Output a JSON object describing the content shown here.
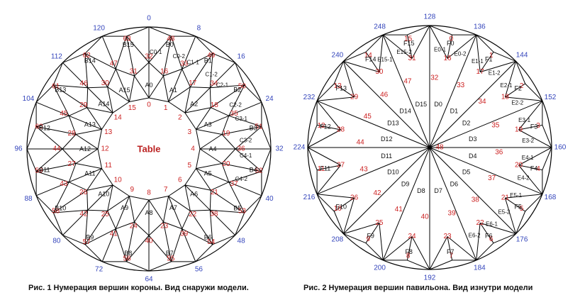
{
  "colors": {
    "line": "#000000",
    "vertex": "#cc2222",
    "outer": "#3344bb",
    "table_text": "#bb2222",
    "caption": "#111111"
  },
  "crown": {
    "table_label": "Table",
    "outer_labels": [
      "0",
      "8",
      "16",
      "24",
      "32",
      "40",
      "48",
      "56",
      "64",
      "72",
      "80",
      "88",
      "96",
      "104",
      "112",
      "120"
    ],
    "girdle_labels": [
      "B0",
      "B1",
      "B2",
      "B3",
      "B4",
      "B5",
      "B6",
      "B7",
      "B8",
      "B9",
      "B10",
      "B11",
      "B12",
      "B13",
      "B14",
      "B15"
    ],
    "table_vertices": [
      "0",
      "1",
      "2",
      "3",
      "4",
      "5",
      "6",
      "7",
      "8",
      "9",
      "10",
      "11",
      "12",
      "13",
      "14",
      "15"
    ],
    "a_labels": [
      "A0",
      "A1",
      "A2",
      "A3",
      "A4",
      "A5",
      "A6",
      "A7",
      "A8",
      "A9",
      "A10",
      "A11",
      "A12",
      "A13",
      "A14",
      "A15"
    ],
    "star_vertices": [
      "16",
      "17",
      "18",
      "19",
      "20",
      "21",
      "22",
      "23",
      "24",
      "25",
      "26",
      "27",
      "28",
      "29",
      "30",
      "31"
    ],
    "upper_vertices": [
      "32",
      "33",
      "34",
      "35",
      "36",
      "37",
      "38",
      "39",
      "40",
      "41",
      "42",
      "43",
      "44",
      "45",
      "46",
      "47"
    ],
    "girdle_vertices": [
      "48",
      "49",
      "50",
      "51",
      "52",
      "53",
      "54",
      "55",
      "56",
      "57",
      "58",
      "59",
      "60",
      "61",
      "62",
      "63"
    ],
    "sub_labels": [
      "C0-1",
      "C0-2",
      "C1-1",
      "C1-2",
      "C2-1",
      "C2-2",
      "C3-1",
      "C3-2",
      "C4-1",
      "C4-2"
    ]
  },
  "pavilion": {
    "outer_labels": [
      "128",
      "136",
      "144",
      "152",
      "160",
      "168",
      "176",
      "184",
      "192",
      "200",
      "208",
      "216",
      "224",
      "232",
      "240",
      "248"
    ],
    "f_labels": [
      "F0",
      "F1",
      "F2",
      "F3",
      "F4",
      "F5",
      "F6",
      "F7",
      "F8",
      "F9",
      "F10",
      "F11",
      "F12",
      "F13",
      "F14",
      "F15"
    ],
    "d_labels": [
      "D0",
      "D1",
      "D2",
      "D3",
      "D4",
      "D5",
      "D6",
      "D7",
      "D8",
      "D9",
      "D10",
      "D11",
      "D12",
      "D13",
      "D14",
      "D15"
    ],
    "center_vertex": "48",
    "mid_vertices": [
      "32",
      "33",
      "34",
      "35",
      "36",
      "37",
      "38",
      "39",
      "40",
      "41",
      "42",
      "43",
      "44",
      "45",
      "46",
      "47"
    ],
    "inner_vertices": [
      "16",
      "17",
      "18",
      "19",
      "20",
      "21",
      "22",
      "23",
      "24",
      "25",
      "26",
      "27",
      "28",
      "29",
      "30",
      "31"
    ],
    "girdle_vertices": [
      "0",
      "1",
      "2",
      "3",
      "4",
      "5",
      "6",
      "7",
      "8",
      "9",
      "10",
      "11",
      "12",
      "13",
      "14",
      "15"
    ],
    "e_labels": [
      "E0-1",
      "E0-2",
      "E1-1",
      "E1-2",
      "E2-1",
      "E2-2",
      "E3-1",
      "E3-2",
      "E4-1",
      "E4-2",
      "E5-1",
      "E5-2",
      "E6-1",
      "E6-2",
      "E15-1",
      "E15-2"
    ]
  },
  "captions": {
    "left": "Рис. 1  Нумерация вершин короны. Вид снаружи модели.",
    "right": "Рис. 2  Нумерация вершин павильона. Вид изнутри модели"
  }
}
